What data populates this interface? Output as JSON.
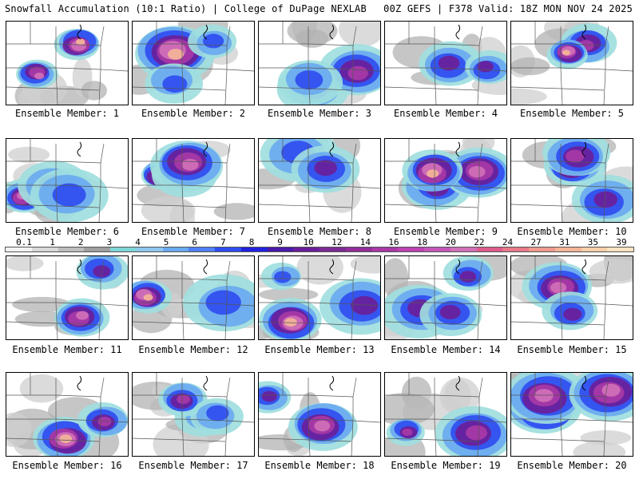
{
  "header": {
    "title_left": "Snowfall Accumulation (10:1 Ratio) | College of DuPage NEXLAB",
    "title_right": "00Z GEFS | F378 Valid: 18Z MON NOV 24 2025"
  },
  "members": [
    {
      "label": "Ensemble Member: 1"
    },
    {
      "label": "Ensemble Member: 2"
    },
    {
      "label": "Ensemble Member: 3"
    },
    {
      "label": "Ensemble Member: 4"
    },
    {
      "label": "Ensemble Member: 5"
    },
    {
      "label": "Ensemble Member: 6"
    },
    {
      "label": "Ensemble Member: 7"
    },
    {
      "label": "Ensemble Member: 8"
    },
    {
      "label": "Ensemble Member: 9"
    },
    {
      "label": "Ensemble Member: 10"
    },
    {
      "label": "Ensemble Member: 11"
    },
    {
      "label": "Ensemble Member: 12"
    },
    {
      "label": "Ensemble Member: 13"
    },
    {
      "label": "Ensemble Member: 14"
    },
    {
      "label": "Ensemble Member: 15"
    },
    {
      "label": "Ensemble Member: 16"
    },
    {
      "label": "Ensemble Member: 17"
    },
    {
      "label": "Ensemble Member: 18"
    },
    {
      "label": "Ensemble Member: 19"
    },
    {
      "label": "Ensemble Member: 20"
    }
  ],
  "colorbar": {
    "labels": [
      "0.1",
      "1",
      "2",
      "3",
      "4",
      "5",
      "6",
      "7",
      "8",
      "9",
      "10",
      "12",
      "14",
      "16",
      "18",
      "20",
      "22",
      "24",
      "27",
      "31",
      "35",
      "39"
    ],
    "colors": [
      "#f2f2f2",
      "#d9d9d9",
      "#bdbdbd",
      "#a0a0a0",
      "#7fd6d6",
      "#8ec7ee",
      "#6aaaf0",
      "#4f80f5",
      "#2f4df0",
      "#2222dd",
      "#4a1aa8",
      "#6a1f9a",
      "#7d2a94",
      "#922e99",
      "#a83aa6",
      "#bb44b2",
      "#c458b8",
      "#d070b8",
      "#dc5c8c",
      "#e67a8a",
      "#ee9a8e",
      "#f3b498",
      "#f7cfa8",
      "#fae3c0"
    ]
  }
}
